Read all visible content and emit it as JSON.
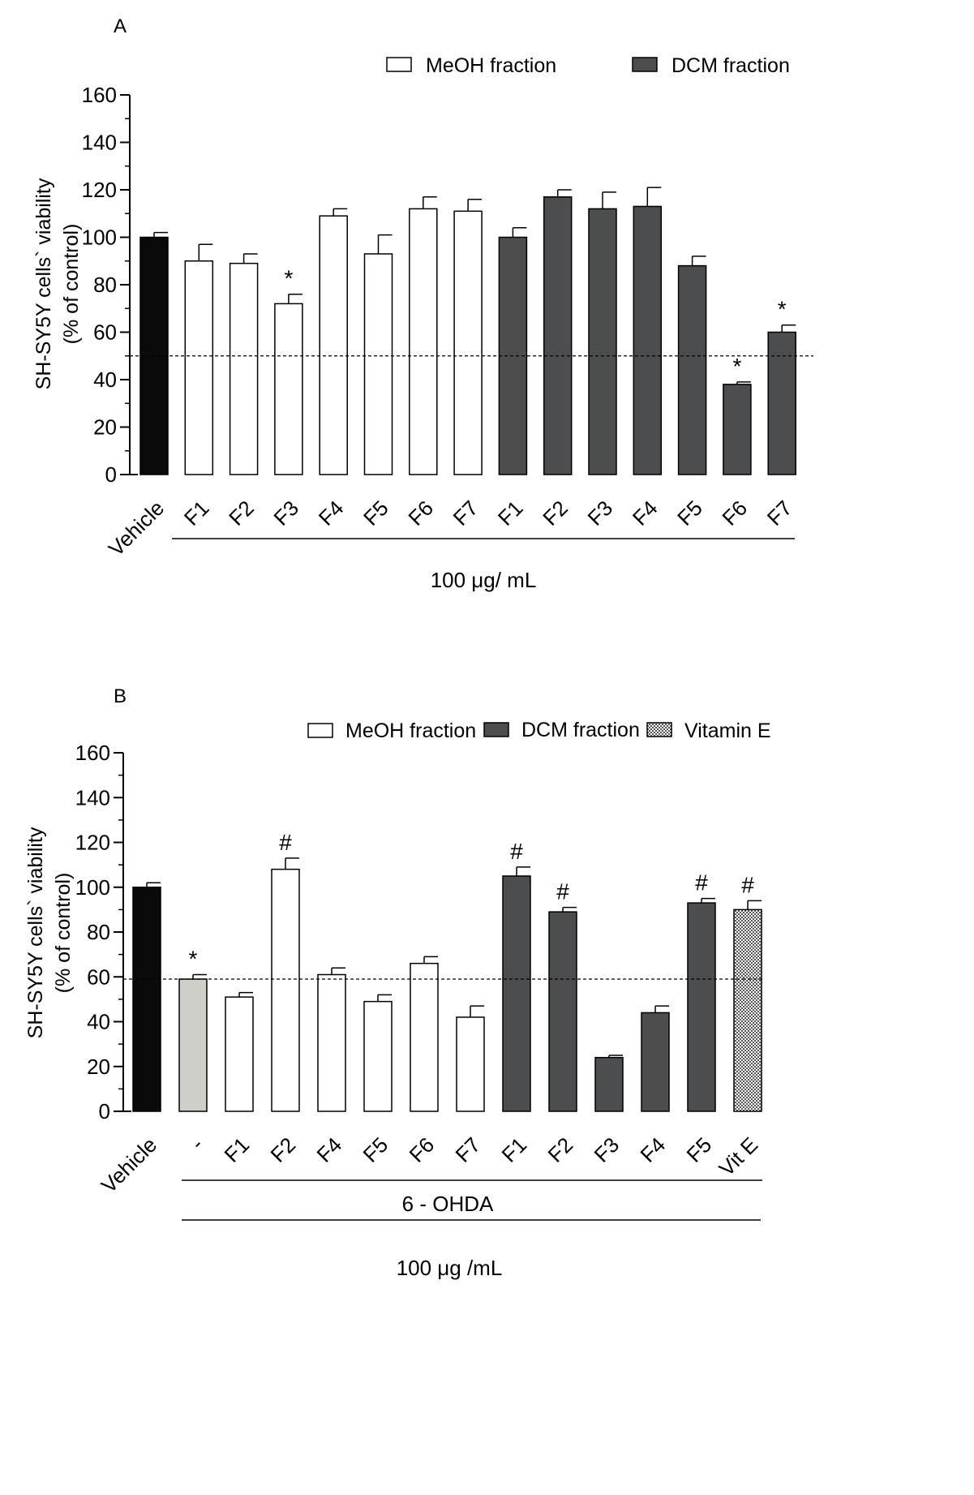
{
  "figure": {
    "title": ""
  },
  "chart_data": [
    {
      "type": "bar",
      "panel": "A",
      "ylabel_line1": "SH-SY5Y cells` viability",
      "ylabel_line2": "(% of control)",
      "ylim": [
        0,
        160
      ],
      "yticks": [
        0,
        20,
        40,
        60,
        80,
        100,
        120,
        140,
        160
      ],
      "threshold_line": 50,
      "legend": [
        {
          "name": "MeOH fraction",
          "key": "meoh"
        },
        {
          "name": "DCM fraction",
          "key": "dcm"
        }
      ],
      "categories": [
        "Vehicle",
        "F1",
        "F2",
        "F3",
        "F4",
        "F5",
        "F6",
        "F7",
        "F1",
        "F2",
        "F3",
        "F4",
        "F5",
        "F6",
        "F7"
      ],
      "values": [
        100,
        90,
        89,
        72,
        109,
        93,
        112,
        111,
        100,
        117,
        112,
        113,
        88,
        38,
        60
      ],
      "errors": [
        2,
        7,
        4,
        4,
        3,
        8,
        5,
        5,
        4,
        3,
        7,
        8,
        4,
        1,
        3
      ],
      "groups": [
        "vehicle",
        "meoh",
        "meoh",
        "meoh",
        "meoh",
        "meoh",
        "meoh",
        "meoh",
        "dcm",
        "dcm",
        "dcm",
        "dcm",
        "dcm",
        "dcm",
        "dcm"
      ],
      "annotations": [
        "",
        "",
        "",
        "*",
        "",
        "",
        "",
        "",
        "",
        "",
        "",
        "",
        "",
        "*",
        "*"
      ],
      "bracket_labels": [
        "100 μg/ mL"
      ]
    },
    {
      "type": "bar",
      "panel": "B",
      "ylabel_line1": "SH-SY5Y cells` viability",
      "ylabel_line2": "(% of control)",
      "ylim": [
        0,
        160
      ],
      "yticks": [
        0,
        20,
        40,
        60,
        80,
        100,
        120,
        140,
        160
      ],
      "threshold_line": 59,
      "legend": [
        {
          "name": "MeOH fraction",
          "key": "meoh"
        },
        {
          "name": "DCM fraction",
          "key": "dcm"
        },
        {
          "name": "Vitamin E",
          "key": "vite"
        }
      ],
      "categories": [
        "Vehicle",
        "-",
        "F1",
        "F2",
        "F4",
        "F5",
        "F6",
        "F7",
        "F1",
        "F2",
        "F3",
        "F4",
        "F5",
        "Vit E"
      ],
      "values": [
        100,
        59,
        51,
        108,
        61,
        49,
        66,
        42,
        105,
        89,
        24,
        44,
        93,
        90
      ],
      "errors": [
        2,
        2,
        2,
        5,
        3,
        3,
        3,
        5,
        4,
        2,
        1,
        3,
        2,
        4
      ],
      "groups": [
        "vehicle",
        "neg",
        "meoh",
        "meoh",
        "meoh",
        "meoh",
        "meoh",
        "meoh",
        "dcm",
        "dcm",
        "dcm",
        "dcm",
        "dcm",
        "vite"
      ],
      "annotations": [
        "",
        "*",
        "",
        "#",
        "",
        "",
        "",
        "",
        "#",
        "#",
        "",
        "",
        "#",
        "#"
      ],
      "bracket_labels": [
        "6 - OHDA",
        "100 μg /mL"
      ]
    }
  ],
  "colors": {
    "vehicle": "#0a0a0a",
    "neg": "#d0d0cb",
    "meoh": "#ffffff",
    "dcm": "#4b4d4f",
    "axis": "#000000"
  }
}
